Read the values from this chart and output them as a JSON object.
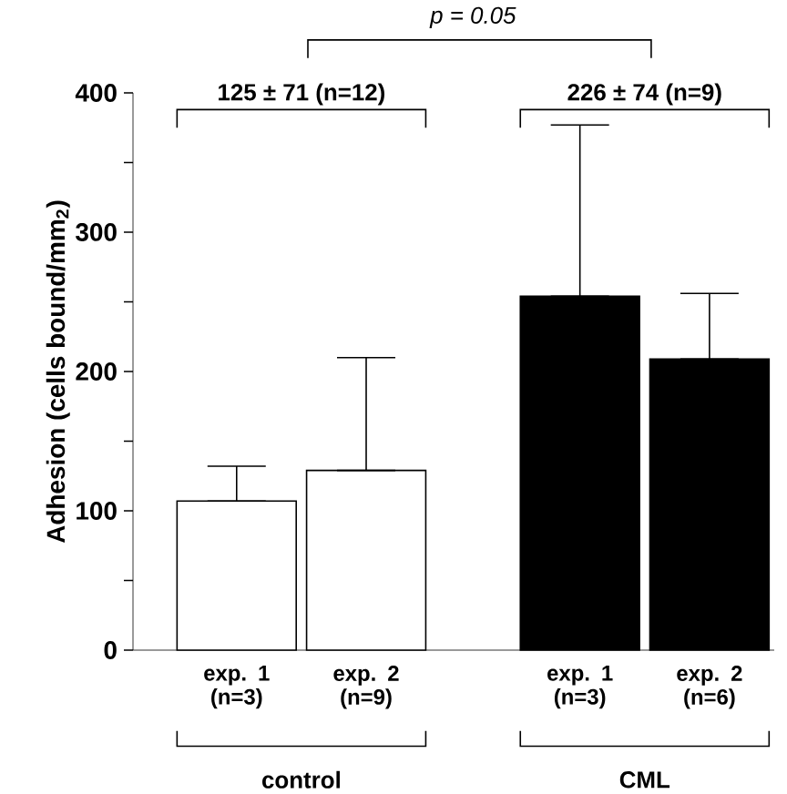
{
  "chart_data": {
    "type": "bar",
    "ylabel": "Adhesion (cells bound/mm$_{2}$)",
    "categories": [
      "exp. 1 (n=3)",
      "exp. 2 (n=9)",
      "exp. 1 (n=3)",
      "exp. 2 (n=6)"
    ],
    "values": [
      107,
      129,
      254,
      209
    ],
    "colors": [
      "#ffffff",
      "#ffffff",
      "#000000",
      "#000000"
    ],
    "errors": [
      [
        107,
        132
      ],
      [
        129,
        210
      ],
      [
        254,
        377
      ],
      [
        209,
        256
      ]
    ],
    "ylim": [
      0,
      400
    ],
    "yticks": [
      0,
      {
        "value": 50,
        "label": null
      },
      100,
      {
        "value": 150,
        "label": null
      },
      200,
      {
        "value": 250,
        "label": null
      },
      300,
      {
        "value": 350,
        "label": null
      },
      400
    ],
    "annotations": [
      "p = 0.05",
      "125 ± 71 (n=12)",
      "226 ± 74 (n=9)",
      "control",
      "CML"
    ],
    "grid": false
  }
}
